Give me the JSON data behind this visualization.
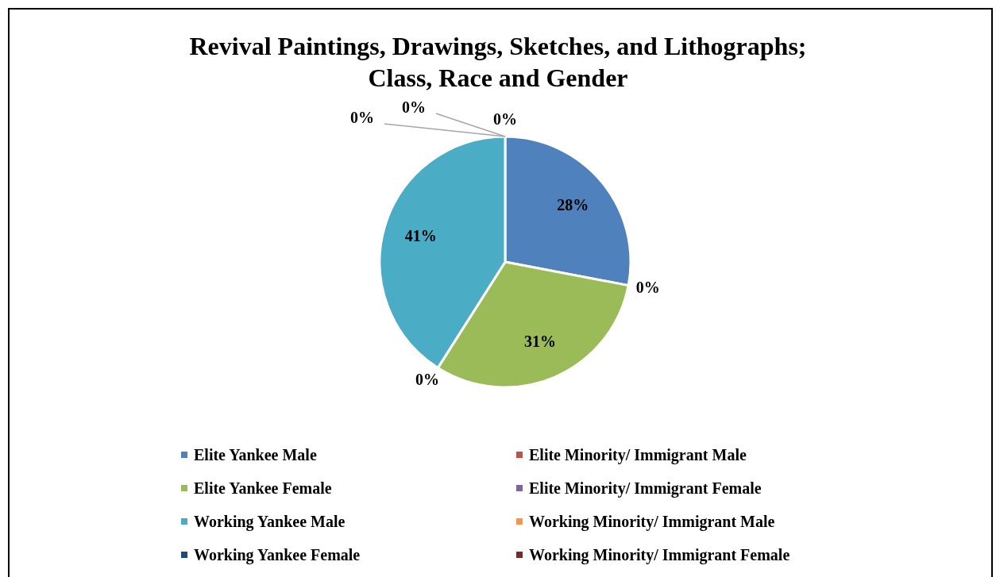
{
  "chart_data": {
    "type": "pie",
    "title": "Revival Paintings, Drawings, Sketches, and Lithographs;\nClass, Race and Gender",
    "categories": [
      "Elite Yankee Male",
      "Elite Minority/ Immigrant Male",
      "Elite Yankee Female",
      "Elite Minority/ Immigrant Female",
      "Working Yankee Male",
      "Working Minority/ Immigrant Male",
      "Working Yankee Female",
      "Working Minority/ Immigrant Female"
    ],
    "values": [
      28,
      0,
      31,
      0,
      41,
      0,
      0,
      0
    ],
    "colors": [
      "#4f81bd",
      "#c0504d",
      "#9bbb59",
      "#8064a2",
      "#4bacc6",
      "#f79646",
      "#1f497d",
      "#772c2a"
    ],
    "value_labels": [
      "28%",
      "0%",
      "31%",
      "0%",
      "41%",
      "0%",
      "0%",
      "0%"
    ],
    "legend": "bottom"
  }
}
